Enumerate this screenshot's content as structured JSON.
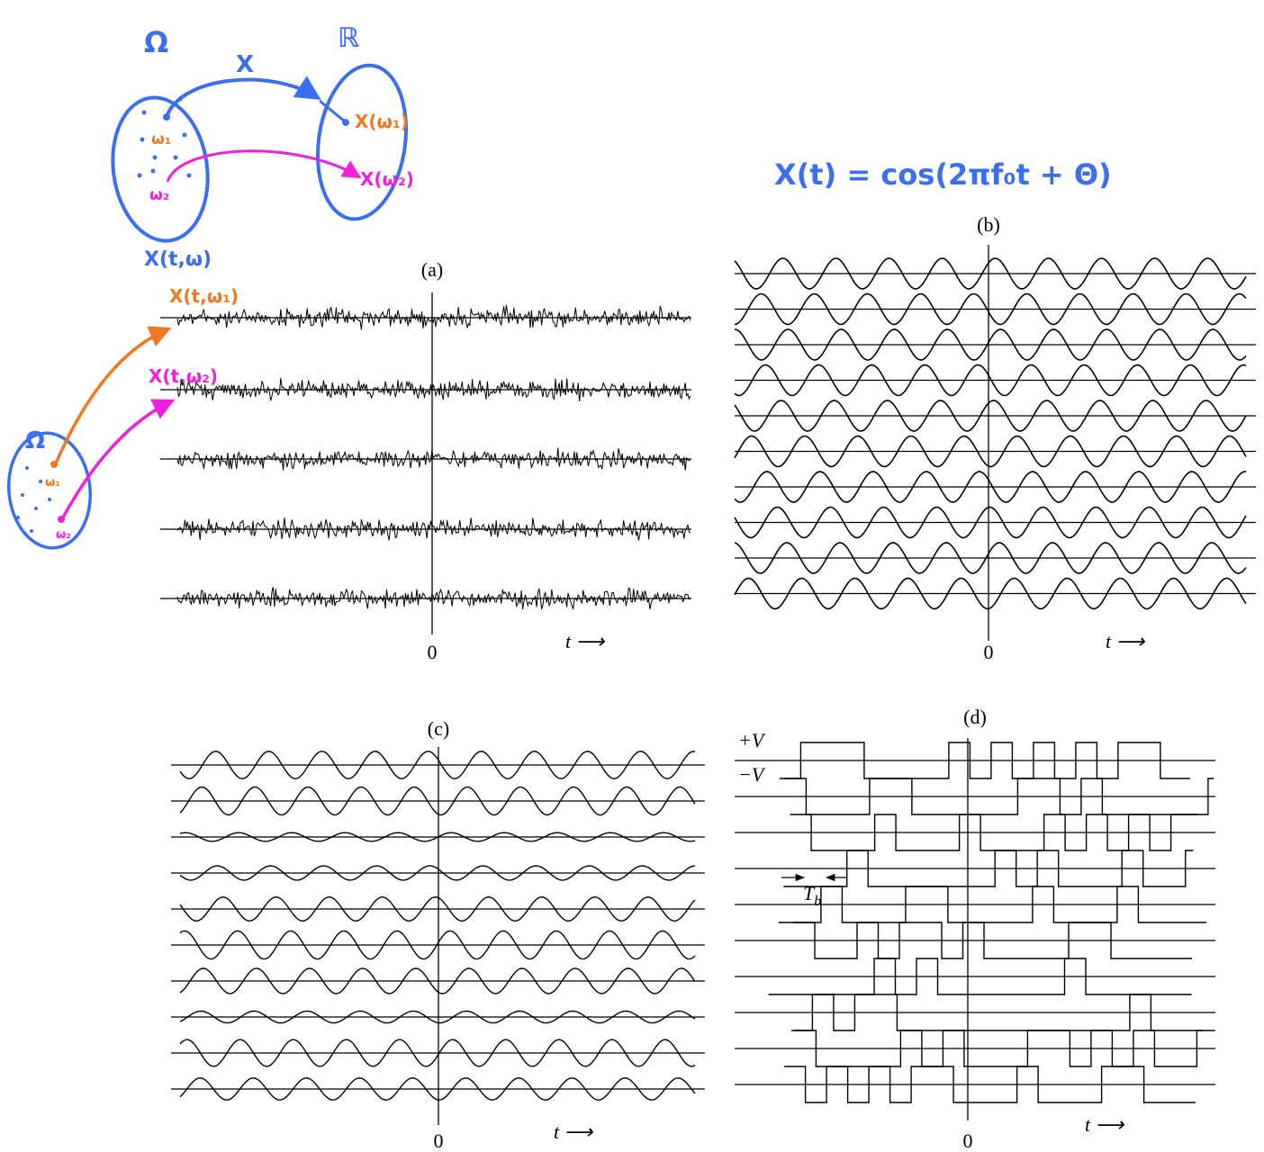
{
  "top_diagram": {
    "domain": "Ω",
    "codomain": "ℝ",
    "map": "X",
    "point1": "ω₁",
    "point2": "ω₂",
    "image1": "X(ω₁)",
    "image2": "X(ω₂)"
  },
  "formula": "X(t) = cos(2πf₀t + Θ)",
  "left_diagram": {
    "process": "X(t,ω)",
    "sample1": "X(t,ω₁)",
    "sample2": "X(t,ω₂)",
    "domain": "Ω",
    "point1": "ω₁",
    "point2": "ω₂"
  },
  "panels": [
    {
      "label": "(a)",
      "origin": "0",
      "time": "t ⟶"
    },
    {
      "label": "(b)",
      "origin": "0",
      "time": "t ⟶"
    },
    {
      "label": "(c)",
      "origin": "0",
      "time": "t ⟶"
    },
    {
      "label": "(d)",
      "origin": "0",
      "time": "t ⟶",
      "plus_v": "+V",
      "minus_v": "−V",
      "bit_period": {
        "main": "T",
        "sub": "b"
      }
    }
  ]
}
